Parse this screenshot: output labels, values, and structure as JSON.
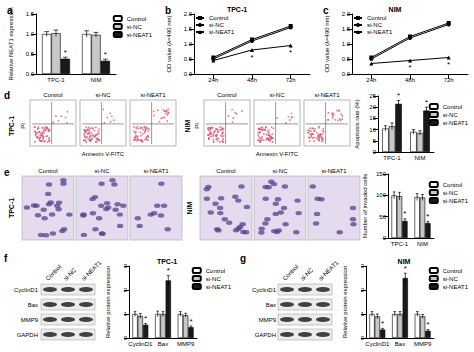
{
  "chart_data": [
    {
      "type": "bar",
      "panel": "a",
      "y_label": "Relative NEAT1 expression",
      "categories": [
        "TPC-1",
        "NIM"
      ],
      "ylim": [
        0,
        1.5
      ],
      "yticks": [
        {
          "value": 0,
          "label": "0.0"
        },
        {
          "value": 0.5,
          "label": "0.5"
        },
        {
          "value": 1,
          "label": "1.0"
        },
        {
          "value": 1.5,
          "label": "1.5"
        }
      ],
      "grid": false,
      "legend": "upper right",
      "series": [
        {
          "name": "Control",
          "color": "#ffffff",
          "values": [
            1.0,
            1.0
          ],
          "errors": [
            0.06,
            0.08
          ]
        },
        {
          "name": "si-NC",
          "color": "#c8c8c8",
          "values": [
            1.02,
            0.98
          ],
          "errors": [
            0.08,
            0.06
          ]
        },
        {
          "name": "si-NEAT1",
          "color": "#1a1a1a",
          "values": [
            0.38,
            0.33
          ],
          "errors": [
            0.04,
            0.04
          ],
          "annotations": [
            "*",
            "*"
          ]
        }
      ]
    },
    {
      "type": "line",
      "panel": "b",
      "title": "TPC-1",
      "y_label": "OD value (λ=490 nm)",
      "categories": [
        "24h",
        "48h",
        "72h"
      ],
      "ylim": [
        0,
        2
      ],
      "yticks": [
        {
          "value": 0,
          "label": "0.0"
        },
        {
          "value": 0.5,
          "label": "0.5"
        },
        {
          "value": 1,
          "label": "1.0"
        },
        {
          "value": 1.5,
          "label": "1.5"
        },
        {
          "value": 2,
          "label": "2.0"
        }
      ],
      "grid": false,
      "legend": "upper left",
      "series": [
        {
          "name": "Control",
          "color": "#000000",
          "marker": "square",
          "values": [
            0.55,
            1.15,
            1.6
          ]
        },
        {
          "name": "si-NC",
          "color": "#000000",
          "marker": "circle",
          "values": [
            0.5,
            1.1,
            1.55
          ]
        },
        {
          "name": "si-NEAT1",
          "color": "#000000",
          "marker": "triangle",
          "values": [
            0.45,
            0.8,
            0.95
          ],
          "annotations": [
            null,
            "*",
            "*"
          ]
        }
      ]
    },
    {
      "type": "line",
      "panel": "c",
      "title": "NIM",
      "y_label": "OD value (λ=490 nm)",
      "categories": [
        "24h",
        "48h",
        "72h"
      ],
      "ylim": [
        0,
        2
      ],
      "yticks": [
        {
          "value": 0,
          "label": "0.0"
        },
        {
          "value": 0.5,
          "label": "0.5"
        },
        {
          "value": 1,
          "label": "1.0"
        },
        {
          "value": 1.5,
          "label": "1.5"
        },
        {
          "value": 2,
          "label": "2.0"
        }
      ],
      "grid": false,
      "legend": "upper left",
      "series": [
        {
          "name": "Control",
          "color": "#000000",
          "marker": "square",
          "values": [
            0.55,
            1.25,
            1.7
          ]
        },
        {
          "name": "si-NC",
          "color": "#000000",
          "marker": "circle",
          "values": [
            0.5,
            1.2,
            1.65
          ]
        },
        {
          "name": "si-NEAT1",
          "color": "#000000",
          "marker": "triangle",
          "values": [
            0.35,
            0.45,
            0.55
          ],
          "annotations": [
            null,
            "*",
            "*"
          ]
        }
      ]
    },
    {
      "type": "bar",
      "y_label": "Apoptosis rate (%)",
      "categories": [
        "TPC-1",
        "NIM"
      ],
      "ylim": [
        0,
        25
      ],
      "yticks": [
        0,
        5,
        10,
        15,
        20,
        25
      ],
      "grid": false,
      "legend": "upper right",
      "series": [
        {
          "name": "Control",
          "color": "#ffffff",
          "values": [
            10.5,
            9.0
          ],
          "errors": [
            1.2,
            1.0
          ]
        },
        {
          "name": "si-NC",
          "color": "#c8c8c8",
          "values": [
            11.5,
            8.5
          ],
          "errors": [
            1.5,
            1.0
          ]
        },
        {
          "name": "si-NEAT1",
          "color": "#1a1a1a",
          "values": [
            21.5,
            18.5
          ],
          "errors": [
            1.5,
            1.5
          ],
          "annotations": [
            "*",
            "*"
          ]
        }
      ]
    },
    {
      "type": "bar",
      "y_label": "Number of invaded cells",
      "categories": [
        "TPC-1",
        "NIM"
      ],
      "ylim": [
        0,
        150
      ],
      "yticks": [
        0,
        50,
        100,
        150
      ],
      "grid": false,
      "legend": "upper right",
      "series": [
        {
          "name": "Control",
          "color": "#ffffff",
          "values": [
            100,
            96
          ],
          "errors": [
            8,
            8
          ]
        },
        {
          "name": "si-NC",
          "color": "#c8c8c8",
          "values": [
            98,
            95
          ],
          "errors": [
            9,
            7
          ]
        },
        {
          "name": "si-NEAT1",
          "color": "#1a1a1a",
          "values": [
            40,
            35
          ],
          "errors": [
            5,
            4
          ],
          "annotations": [
            "*",
            "*"
          ]
        }
      ]
    },
    {
      "type": "bar",
      "title": "TPC-1",
      "y_label": "Relative protein expression",
      "categories": [
        "CyclinD1",
        "Bax",
        "MMP9"
      ],
      "ylim": [
        0,
        3
      ],
      "yticks": [
        0,
        1,
        2,
        3
      ],
      "grid": false,
      "legend": "upper right",
      "series": [
        {
          "name": "Control",
          "color": "#ffffff",
          "values": [
            1.0,
            1.0,
            1.0
          ],
          "errors": [
            0.1,
            0.12,
            0.1
          ]
        },
        {
          "name": "si-NC",
          "color": "#c8c8c8",
          "values": [
            0.92,
            1.0,
            0.95
          ],
          "errors": [
            0.1,
            0.1,
            0.08
          ]
        },
        {
          "name": "si-NEAT1",
          "color": "#1a1a1a",
          "values": [
            0.55,
            2.4,
            0.45
          ],
          "errors": [
            0.06,
            0.2,
            0.05
          ],
          "annotations": [
            "*",
            "*",
            "*"
          ]
        }
      ]
    },
    {
      "type": "bar",
      "title": "NIM",
      "y_label": "Relative protein expression",
      "categories": [
        "CyclinD1",
        "Bax",
        "MMP9"
      ],
      "ylim": [
        0,
        3
      ],
      "yticks": [
        0,
        1,
        2,
        3
      ],
      "grid": false,
      "legend": "upper right",
      "series": [
        {
          "name": "Control",
          "color": "#ffffff",
          "values": [
            1.0,
            1.0,
            1.0
          ],
          "errors": [
            0.1,
            0.1,
            0.1
          ]
        },
        {
          "name": "si-NC",
          "color": "#c8c8c8",
          "values": [
            0.9,
            1.0,
            0.9
          ],
          "errors": [
            0.1,
            0.1,
            0.08
          ]
        },
        {
          "name": "si-NEAT1",
          "color": "#1a1a1a",
          "values": [
            0.35,
            2.5,
            0.3
          ],
          "errors": [
            0.05,
            0.2,
            0.05
          ],
          "annotations": [
            "*",
            "*",
            "*"
          ]
        }
      ]
    }
  ],
  "figures": {
    "d": {
      "panel": "d",
      "groups": [
        "TPC-1",
        "NIM"
      ],
      "columns": [
        "Control",
        "si-NC",
        "si-NEAT1"
      ],
      "x_label": "Annexin V-FITC",
      "y_label": "PI"
    },
    "e": {
      "panel": "e",
      "groups": [
        "TPC-1",
        "NIM"
      ],
      "columns": [
        "Control",
        "si-NC",
        "si-NEAT1"
      ]
    },
    "f": {
      "panel": "f",
      "lanes": [
        "Control",
        "si-NC",
        "si-NEAT1"
      ],
      "bands": [
        "CyclinD1",
        "Bax",
        "MMP9",
        "GAPDH"
      ]
    },
    "g": {
      "panel": "g",
      "lanes": [
        "Control",
        "si-NC",
        "si-NEAT1"
      ],
      "bands": [
        "CyclinD1",
        "Bax",
        "MMP9",
        "GAPDH"
      ]
    }
  }
}
